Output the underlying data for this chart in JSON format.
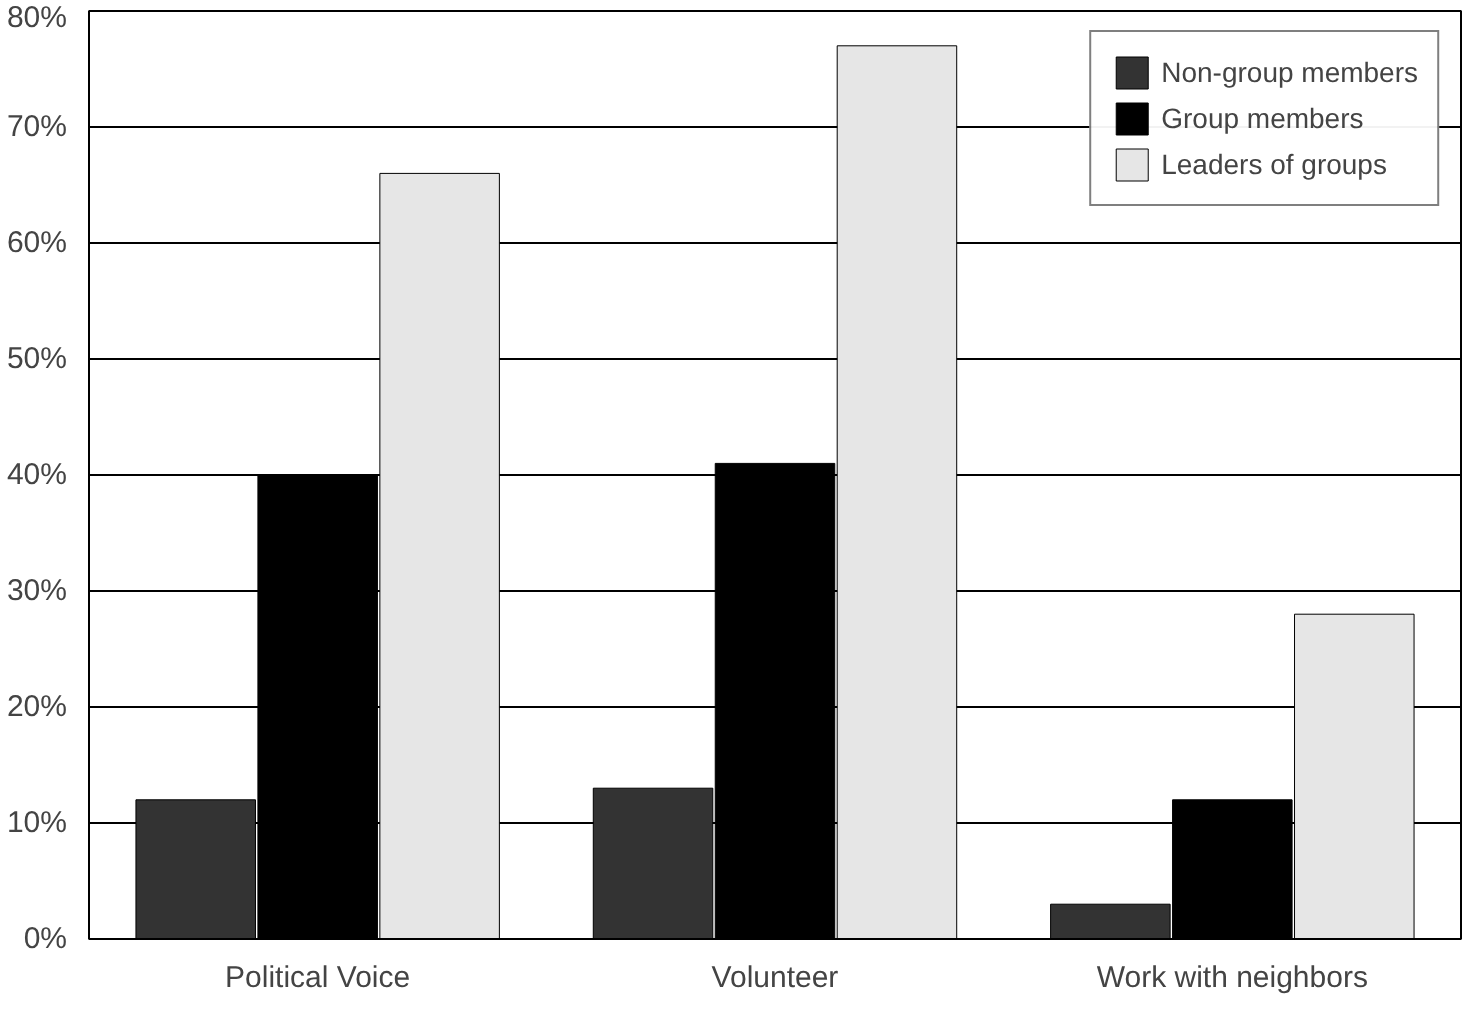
{
  "chart_data": {
    "type": "bar",
    "categories": [
      "Political Voice",
      "Volunteer",
      "Work with neighbors"
    ],
    "series": [
      {
        "name": "Non-group members",
        "color": "#333333",
        "values": [
          12,
          13,
          3
        ]
      },
      {
        "name": "Group members",
        "color": "#000000",
        "values": [
          40,
          41,
          12
        ]
      },
      {
        "name": "Leaders of groups",
        "color": "#e6e6e6",
        "values": [
          66,
          77,
          28
        ]
      }
    ],
    "ylim": [
      0,
      80
    ],
    "yticks": [
      {
        "value": 0,
        "label": "0%"
      },
      {
        "value": 10,
        "label": "10%"
      },
      {
        "value": 20,
        "label": "20%"
      },
      {
        "value": 30,
        "label": "30%"
      },
      {
        "value": 40,
        "label": "40%"
      },
      {
        "value": 50,
        "label": "50%"
      },
      {
        "value": 60,
        "label": "60%"
      },
      {
        "value": 70,
        "label": "70%"
      },
      {
        "value": 80,
        "label": "80%"
      }
    ],
    "grid": "y",
    "legend": "top right"
  }
}
